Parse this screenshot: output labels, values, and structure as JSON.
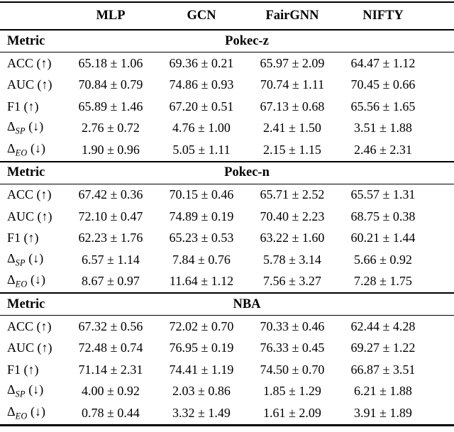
{
  "page": {
    "background_color": "#ffffff",
    "text_color": "#000000"
  },
  "table": {
    "corner_label": "",
    "metric_column_header": "Metric",
    "model_headers": [
      "MLP",
      "GCN",
      "FairGNN",
      "NIFTY"
    ],
    "sections": [
      {
        "dataset": "Pokec-z",
        "rows": [
          {
            "pre": "ACC",
            "sub": "",
            "post": " (↑)",
            "values": [
              "65.18 ± 1.06",
              "69.36 ± 0.21",
              "65.97 ± 2.09",
              "64.47 ± 1.12"
            ]
          },
          {
            "pre": "AUC",
            "sub": "",
            "post": " (↑)",
            "values": [
              "70.84 ± 0.79",
              "74.86 ± 0.93",
              "70.74 ± 1.11",
              "70.45 ± 0.66"
            ]
          },
          {
            "pre": "F1",
            "sub": "",
            "post": " (↑)",
            "values": [
              "65.89 ± 1.46",
              "67.20 ± 0.51",
              "67.13 ± 0.68",
              "65.56 ± 1.65"
            ]
          },
          {
            "pre": "Δ",
            "sub": "SP",
            "post": " (↓)",
            "values": [
              "2.76 ± 0.72",
              "4.76 ± 1.00",
              "2.41 ± 1.50",
              "3.51 ± 1.88"
            ]
          },
          {
            "pre": "Δ",
            "sub": "EO",
            "post": " (↓)",
            "values": [
              "1.90 ± 0.96",
              "5.05 ± 1.11",
              "2.15 ± 1.15",
              "2.46 ± 2.31"
            ]
          }
        ]
      },
      {
        "dataset": "Pokec-n",
        "rows": [
          {
            "pre": "ACC",
            "sub": "",
            "post": " (↑)",
            "values": [
              "67.42 ± 0.36",
              "70.15 ± 0.46",
              "65.71 ± 2.52",
              "65.57 ± 1.31"
            ]
          },
          {
            "pre": "AUC",
            "sub": "",
            "post": " (↑)",
            "values": [
              "72.10 ± 0.47",
              "74.89 ± 0.19",
              "70.40 ± 2.23",
              "68.75 ± 0.38"
            ]
          },
          {
            "pre": "F1",
            "sub": "",
            "post": " (↑)",
            "values": [
              "62.23 ± 1.76",
              "65.23 ± 0.53",
              "63.22 ± 1.60",
              "60.21 ± 1.44"
            ]
          },
          {
            "pre": "Δ",
            "sub": "SP",
            "post": " (↓)",
            "values": [
              "6.57 ± 1.14",
              "7.84 ± 0.76",
              "5.78 ± 3.14",
              "5.66 ± 0.92"
            ]
          },
          {
            "pre": "Δ",
            "sub": "EO",
            "post": " (↓)",
            "values": [
              "8.67 ± 0.97",
              "11.64 ± 1.12",
              "7.56 ± 3.27",
              "7.28 ± 1.75"
            ]
          }
        ]
      },
      {
        "dataset": "NBA",
        "rows": [
          {
            "pre": "ACC",
            "sub": "",
            "post": " (↑)",
            "values": [
              "67.32 ± 0.56",
              "72.02 ± 0.70",
              "70.33 ± 0.46",
              "62.44 ± 4.28"
            ]
          },
          {
            "pre": "AUC",
            "sub": "",
            "post": " (↑)",
            "values": [
              "72.48 ± 0.74",
              "76.95 ± 0.19",
              "76.33 ± 0.45",
              "69.27 ± 1.22"
            ]
          },
          {
            "pre": "F1",
            "sub": "",
            "post": " (↑)",
            "values": [
              "71.14 ± 2.31",
              "74.41 ± 1.19",
              "74.50 ± 0.70",
              "66.87 ± 3.51"
            ]
          },
          {
            "pre": "Δ",
            "sub": "SP",
            "post": " (↓)",
            "values": [
              "4.00 ± 0.92",
              "2.03 ± 0.86",
              "1.85 ± 1.29",
              "6.21 ± 1.88"
            ]
          },
          {
            "pre": "Δ",
            "sub": "EO",
            "post": " (↓)",
            "values": [
              "0.78 ± 0.44",
              "3.32 ± 1.49",
              "1.61 ± 2.09",
              "3.91 ± 1.89"
            ]
          }
        ]
      }
    ]
  }
}
